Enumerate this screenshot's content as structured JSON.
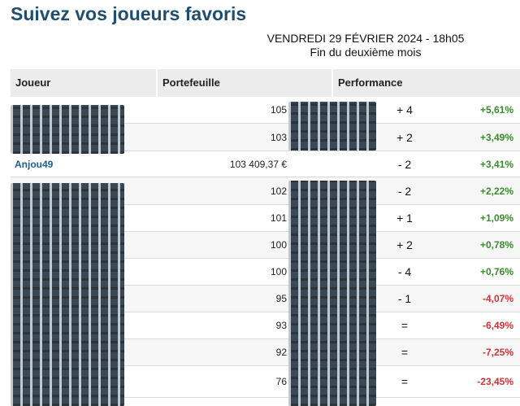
{
  "page": {
    "title": "Suivez vos joueurs favoris",
    "datetime": "VENDREDI 29 FÉVRIER 2024 - 18h05",
    "period": "Fin du deuxième mois"
  },
  "table": {
    "headers": [
      "Joueur",
      "Portefeuille",
      "Performance"
    ],
    "rows": [
      {
        "player": "",
        "portfolio": "105",
        "rank_change": "+ 4",
        "performance": "+5,61%",
        "trend": "pos"
      },
      {
        "player": "",
        "portfolio": "103",
        "rank_change": "+ 2",
        "performance": "+3,49%",
        "trend": "pos"
      },
      {
        "player": "Anjou49",
        "portfolio": "103 409,37 €",
        "rank_change": "- 2",
        "performance": "+3,41%",
        "trend": "pos"
      },
      {
        "player": "",
        "portfolio": "102",
        "rank_change": "- 2",
        "performance": "+2,22%",
        "trend": "pos"
      },
      {
        "player": "",
        "portfolio": "101",
        "rank_change": "+ 1",
        "performance": "+1,09%",
        "trend": "pos"
      },
      {
        "player": "",
        "portfolio": "100",
        "rank_change": "+ 2",
        "performance": "+0,78%",
        "trend": "pos"
      },
      {
        "player": "",
        "portfolio": "100",
        "rank_change": "- 4",
        "performance": "+0,76%",
        "trend": "pos"
      },
      {
        "player": "",
        "portfolio": "95",
        "rank_change": "- 1",
        "performance": "-4,07%",
        "trend": "neg"
      },
      {
        "player": "",
        "portfolio": "93",
        "rank_change": "=",
        "performance": "-6,49%",
        "trend": "neg"
      },
      {
        "player": "",
        "portfolio": "92",
        "rank_change": "=",
        "performance": "-7,25%",
        "trend": "neg"
      },
      {
        "player": "",
        "portfolio": "76",
        "rank_change": "=",
        "performance": "-23,45%",
        "trend": "neg"
      }
    ]
  }
}
